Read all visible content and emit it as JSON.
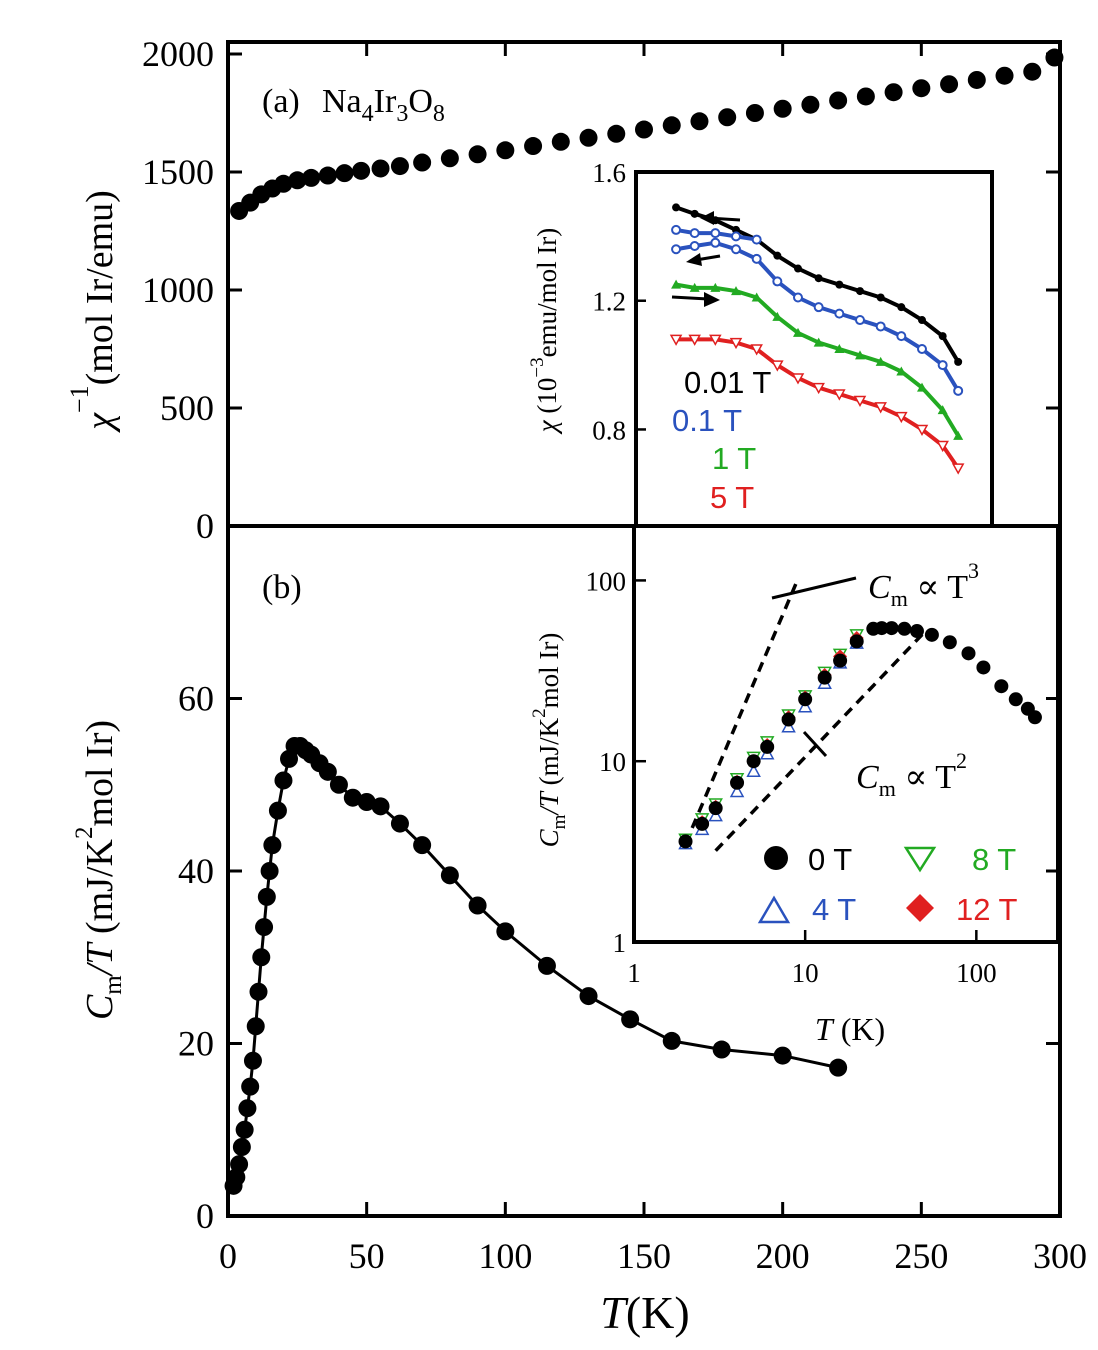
{
  "chart_data": [
    {
      "id": "a",
      "type": "scatter",
      "panel_label": "(a)",
      "compound": {
        "el1": "Na",
        "n1": "4",
        "el2": "Ir",
        "n2": "3",
        "el3": "O",
        "n3": "8"
      },
      "ylabel": {
        "symbol": "χ",
        "sup": "−1",
        "unit": "(mol Ir/emu)"
      },
      "xlim": [
        0,
        300
      ],
      "ylim": [
        0,
        2000
      ],
      "yticks": [
        0,
        500,
        1000,
        1500,
        2000
      ],
      "series": [
        {
          "name": "inverse susceptibility",
          "color": "#000000",
          "x": [
            4,
            8,
            12,
            16,
            20,
            25,
            30,
            36,
            42,
            48,
            55,
            62,
            70,
            80,
            90,
            100,
            110,
            120,
            130,
            140,
            150,
            160,
            170,
            180,
            190,
            200,
            210,
            220,
            230,
            240,
            250,
            260,
            270,
            280,
            290,
            298
          ],
          "y": [
            1335,
            1370,
            1405,
            1430,
            1450,
            1465,
            1475,
            1485,
            1495,
            1505,
            1515,
            1525,
            1540,
            1558,
            1575,
            1592,
            1610,
            1628,
            1645,
            1662,
            1680,
            1698,
            1715,
            1732,
            1750,
            1768,
            1785,
            1803,
            1820,
            1838,
            1855,
            1872,
            1890,
            1908,
            1925,
            1985
          ]
        }
      ]
    },
    {
      "id": "a-inset",
      "type": "line",
      "ylabel": {
        "symbol": "χ",
        "pre": "(10",
        "exp": "−3",
        "post": "emu/mol Ir)"
      },
      "xlim": [
        0,
        300
      ],
      "ylim": [
        0.5,
        1.6
      ],
      "yticks": [
        0.8,
        1.2,
        1.6
      ],
      "legend": [
        {
          "label": "0.01 T",
          "color": "#000000"
        },
        {
          "label": "0.1 T",
          "color": "#2a52be"
        },
        {
          "label": "1 T",
          "color": "#22aa22"
        },
        {
          "label": "5 T",
          "color": "#e02020"
        }
      ],
      "series": [
        {
          "name": "0.01 T",
          "color": "#000000",
          "marker": "filled-circle",
          "x": [
            2,
            20,
            40,
            60,
            80,
            100,
            120,
            140,
            160,
            180,
            200,
            220,
            240,
            260,
            275
          ],
          "y": [
            1.49,
            1.47,
            1.45,
            1.42,
            1.39,
            1.34,
            1.3,
            1.27,
            1.25,
            1.23,
            1.21,
            1.18,
            1.14,
            1.09,
            1.01
          ]
        },
        {
          "name": "0.1 T (upper branch)",
          "color": "#2a52be",
          "marker": "open-circle",
          "x": [
            2,
            20,
            40,
            60,
            80
          ],
          "y": [
            1.42,
            1.41,
            1.41,
            1.4,
            1.39
          ]
        },
        {
          "name": "0.1 T",
          "color": "#2a52be",
          "marker": "open-circle",
          "x": [
            2,
            20,
            40,
            60,
            80,
            100,
            120,
            140,
            160,
            180,
            200,
            220,
            240,
            260,
            275
          ],
          "y": [
            1.36,
            1.37,
            1.38,
            1.36,
            1.33,
            1.26,
            1.21,
            1.18,
            1.16,
            1.14,
            1.12,
            1.09,
            1.05,
            1.0,
            0.92
          ]
        },
        {
          "name": "1 T",
          "color": "#22aa22",
          "marker": "filled-triangle",
          "x": [
            2,
            20,
            40,
            60,
            80,
            100,
            120,
            140,
            160,
            180,
            200,
            220,
            240,
            260,
            275
          ],
          "y": [
            1.25,
            1.24,
            1.24,
            1.23,
            1.21,
            1.15,
            1.1,
            1.07,
            1.05,
            1.03,
            1.01,
            0.98,
            0.93,
            0.86,
            0.78
          ]
        },
        {
          "name": "5 T",
          "color": "#e02020",
          "marker": "open-triangle-down",
          "x": [
            2,
            20,
            40,
            60,
            80,
            100,
            120,
            140,
            160,
            180,
            200,
            220,
            240,
            260,
            275
          ],
          "y": [
            1.08,
            1.08,
            1.08,
            1.07,
            1.05,
            1.0,
            0.96,
            0.93,
            0.91,
            0.89,
            0.87,
            0.84,
            0.8,
            0.75,
            0.68
          ]
        }
      ]
    },
    {
      "id": "b",
      "type": "scatter",
      "panel_label": "(b)",
      "ylabel": {
        "c": "C",
        "csub": "m",
        "t": "/T",
        "pre": "(mJ/K",
        "exp": "2",
        "post": "mol Ir)"
      },
      "xlabel": {
        "t": "T",
        "unit": "(K)"
      },
      "xlim": [
        0,
        300
      ],
      "ylim": [
        0,
        80
      ],
      "xticks": [
        0,
        50,
        100,
        150,
        200,
        250,
        300
      ],
      "yticks": [
        0,
        20,
        40,
        60
      ],
      "series": [
        {
          "name": "Cm/T",
          "color": "#000000",
          "x": [
            2,
            3,
            4,
            5,
            6,
            7,
            8,
            9,
            10,
            11,
            12,
            13,
            14,
            15,
            16,
            18,
            20,
            22,
            24,
            26,
            28,
            30,
            33,
            36,
            40,
            45,
            50,
            55,
            62,
            70,
            80,
            90,
            100,
            115,
            130,
            145,
            160,
            178,
            200,
            220
          ],
          "y": [
            3.5,
            4.5,
            6,
            8,
            10,
            12.5,
            15,
            18,
            22,
            26,
            30,
            33.5,
            37,
            40,
            43,
            47,
            50.5,
            53,
            54.5,
            54.5,
            54,
            53.5,
            52.5,
            51.5,
            50,
            48.5,
            48,
            47.5,
            45.5,
            43,
            39.5,
            36,
            33,
            29,
            25.5,
            22.8,
            20.3,
            19.3,
            18.6,
            17.2
          ],
          "fit_line": true
        }
      ]
    },
    {
      "id": "b-inset",
      "type": "scatter",
      "scale": "log-log",
      "ylabel": {
        "c": "C",
        "csub": "m",
        "t": "/T",
        "pre": "(mJ/K",
        "exp": "2",
        "post": "mol Ir)"
      },
      "xlabel": {
        "t": "T",
        "unit": "(K)"
      },
      "xlim": [
        1,
        300
      ],
      "ylim": [
        1,
        200
      ],
      "xticks": [
        1,
        10,
        100
      ],
      "yticks": [
        1,
        10,
        100
      ],
      "annotations": [
        {
          "text": "C",
          "sub": "m",
          "rel": " ∝ T",
          "exp": "3"
        },
        {
          "text": "C",
          "sub": "m",
          "rel": " ∝ T",
          "exp": "2"
        }
      ],
      "legend": [
        {
          "label": "0 T",
          "color": "#000000",
          "marker": "filled-circle"
        },
        {
          "label": "8 T",
          "color": "#22aa22",
          "marker": "open-triangle-down"
        },
        {
          "label": "4 T",
          "color": "#2a52be",
          "marker": "open-triangle"
        },
        {
          "label": "12 T",
          "color": "#e02020",
          "marker": "filled-diamond"
        }
      ],
      "guide_lines": [
        {
          "name": "T^3",
          "x": [
            2.0,
            9.0
          ],
          "y": [
            3.5,
            100
          ]
        },
        {
          "name": "T^2",
          "x": [
            3.0,
            50
          ],
          "y": [
            3.2,
            52
          ]
        }
      ],
      "series": [
        {
          "name": "0 T",
          "color": "#000000",
          "marker": "filled-circle",
          "x": [
            2,
            2.5,
            3,
            4,
            5,
            6,
            8,
            10,
            13,
            16,
            20,
            25,
            28,
            32,
            38,
            45,
            55,
            70,
            90,
            110,
            140,
            170,
            200,
            220
          ],
          "y": [
            3.6,
            4.5,
            5.5,
            7.6,
            10,
            12,
            17,
            22,
            29,
            36,
            46,
            54,
            54.5,
            54.5,
            54,
            52.5,
            50,
            45.5,
            39.5,
            33,
            26,
            22,
            19.5,
            17.5
          ]
        },
        {
          "name": "4 T",
          "color": "#2a52be",
          "marker": "open-triangle",
          "x": [
            2,
            2.5,
            3,
            4,
            5,
            6,
            8,
            10,
            13,
            16,
            20
          ],
          "y": [
            3.5,
            4.2,
            5.0,
            6.8,
            8.8,
            11,
            15.5,
            20,
            27,
            35,
            45
          ]
        },
        {
          "name": "8 T",
          "color": "#22aa22",
          "marker": "open-triangle-down",
          "x": [
            2,
            2.5,
            3,
            4,
            5,
            6,
            8,
            10,
            13,
            16,
            20
          ],
          "y": [
            3.7,
            4.8,
            5.8,
            8.0,
            10.5,
            12.8,
            18,
            23,
            31,
            39,
            50
          ]
        },
        {
          "name": "12 T",
          "color": "#e02020",
          "marker": "filled-diamond",
          "x": [
            2,
            2.5,
            3,
            4,
            5,
            6,
            8,
            10,
            13,
            16,
            20
          ],
          "y": [
            3.6,
            4.6,
            5.6,
            7.7,
            10,
            12.3,
            17.5,
            22.5,
            30,
            38,
            48
          ]
        }
      ]
    }
  ]
}
